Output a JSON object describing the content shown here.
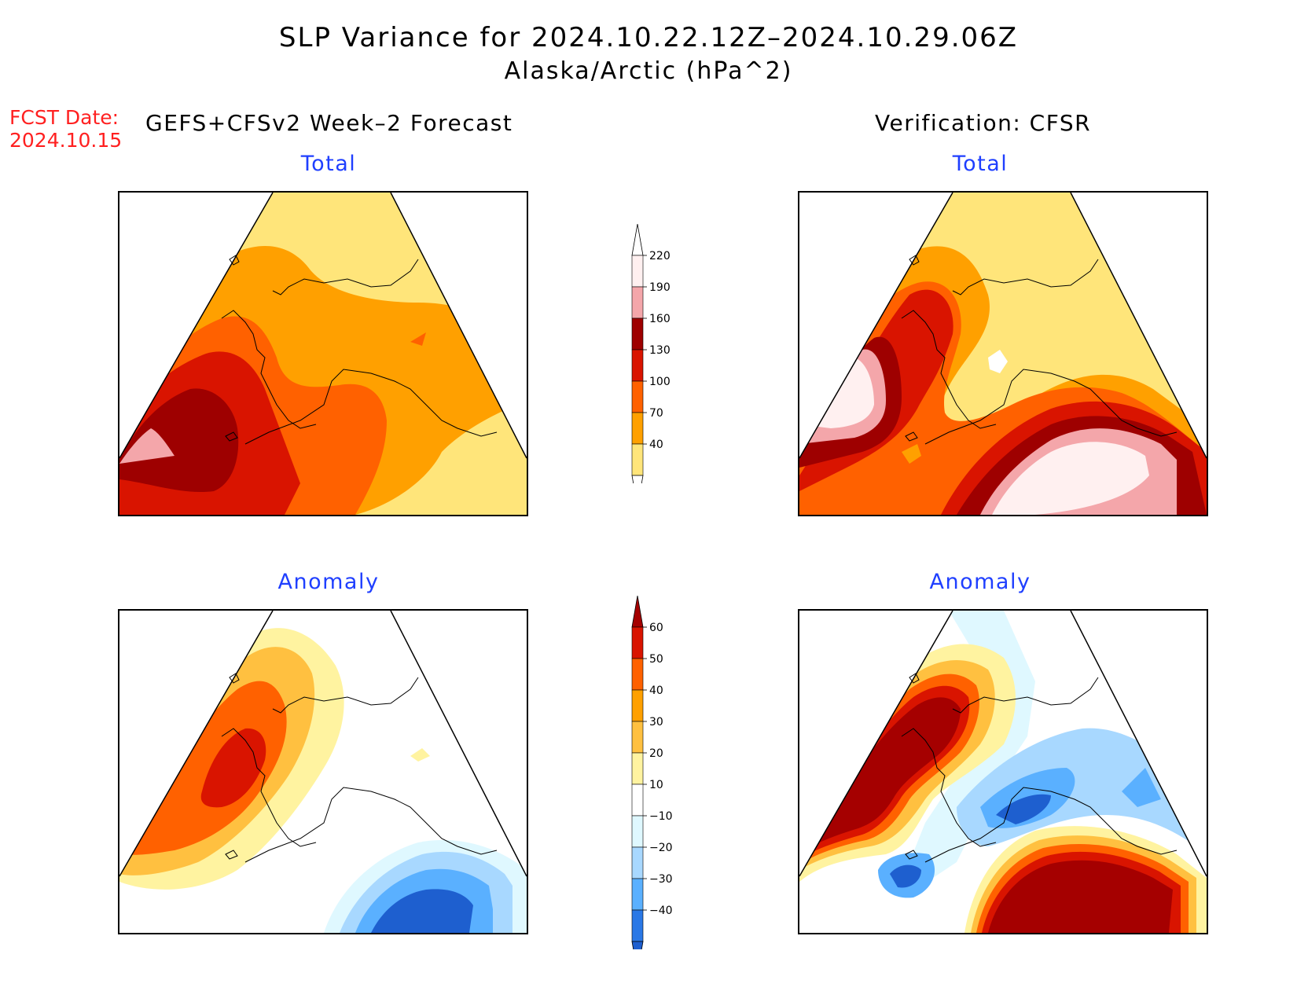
{
  "title": {
    "line1": "SLP Variance for 2024.10.22.12Z–2024.10.29.06Z",
    "line2": "Alaska/Arctic (hPa^2)"
  },
  "forecast_date": {
    "label": "FCST Date:",
    "value": "2024.10.15"
  },
  "headers": {
    "left": "GEFS+CFSv2 Week–2 Forecast",
    "right": "Verification: CFSR"
  },
  "panels": [
    {
      "id": "forecast-total",
      "title": "Total"
    },
    {
      "id": "verification-total",
      "title": "Total"
    },
    {
      "id": "forecast-anomaly",
      "title": "Anomaly"
    },
    {
      "id": "verification-anomaly",
      "title": "Anomaly"
    }
  ],
  "colorbars": {
    "total": {
      "labels": [
        "40",
        "70",
        "100",
        "130",
        "160",
        "190",
        "220"
      ],
      "colors": [
        "#fff0f0",
        "#f4a6aa",
        "#9e0000",
        "#d91400",
        "#ff6100",
        "#ffa000",
        "#ffe57a"
      ]
    },
    "anomaly": {
      "labels": [
        "60",
        "50",
        "40",
        "30",
        "20",
        "10",
        "−10",
        "−20",
        "−30",
        "−40"
      ],
      "colors": [
        "#a50000",
        "#d91400",
        "#ff6100",
        "#ffa000",
        "#ffc040",
        "#fff3a0",
        "#ffffff",
        "#dff8ff",
        "#a8d8ff",
        "#5ab0ff",
        "#2a78e6",
        "#1e5fcf"
      ]
    }
  }
}
